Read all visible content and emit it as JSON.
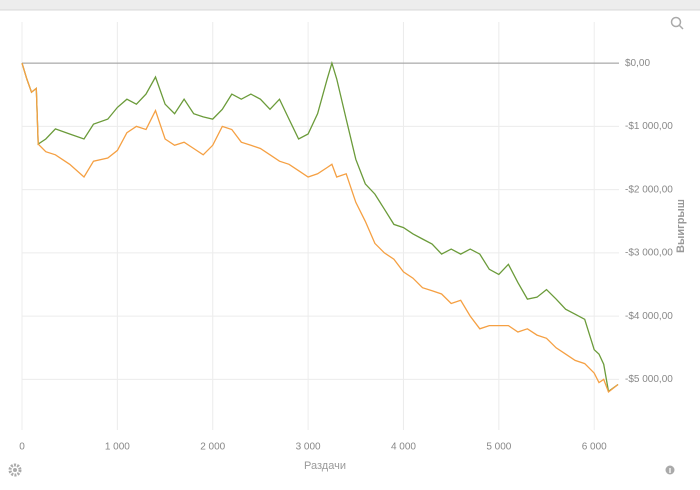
{
  "chart_data": {
    "type": "line",
    "xlabel": "Раздачи",
    "ylabel": "Выигрыш",
    "x": [
      0,
      50,
      100,
      150,
      170,
      250,
      350,
      500,
      650,
      750,
      900,
      1000,
      1100,
      1200,
      1300,
      1400,
      1500,
      1600,
      1700,
      1800,
      1900,
      2000,
      2100,
      2200,
      2300,
      2400,
      2500,
      2600,
      2700,
      2800,
      2900,
      3000,
      3100,
      3200,
      3250,
      3300,
      3400,
      3500,
      3600,
      3700,
      3800,
      3900,
      4000,
      4100,
      4200,
      4300,
      4400,
      4500,
      4600,
      4700,
      4800,
      4900,
      5000,
      5100,
      5200,
      5300,
      5400,
      5500,
      5600,
      5700,
      5800,
      5900,
      6000,
      6050,
      6100,
      6150,
      6250
    ],
    "series": [
      {
        "color": "#6b9b3a",
        "values": [
          0,
          -250,
          -460,
          -400,
          -1280,
          -1200,
          -1040,
          -1120,
          -1200,
          -965,
          -885,
          -700,
          -570,
          -650,
          -490,
          -220,
          -650,
          -800,
          -570,
          -800,
          -850,
          -885,
          -730,
          -490,
          -570,
          -490,
          -570,
          -730,
          -570,
          -885,
          -1200,
          -1120,
          -800,
          -250,
          0,
          -250,
          -885,
          -1520,
          -1910,
          -2070,
          -2310,
          -2550,
          -2600,
          -2700,
          -2780,
          -2860,
          -3020,
          -2940,
          -3020,
          -2940,
          -3020,
          -3260,
          -3340,
          -3180,
          -3470,
          -3730,
          -3700,
          -3580,
          -3730,
          -3890,
          -3970,
          -4050,
          -4530,
          -4600,
          -4760,
          -5190,
          -5080
        ]
      },
      {
        "color": "#f5a043",
        "values": [
          0,
          -250,
          -460,
          -400,
          -1280,
          -1400,
          -1450,
          -1600,
          -1800,
          -1550,
          -1500,
          -1380,
          -1100,
          -1000,
          -1050,
          -750,
          -1200,
          -1300,
          -1250,
          -1350,
          -1450,
          -1300,
          -1000,
          -1050,
          -1250,
          -1300,
          -1350,
          -1450,
          -1550,
          -1600,
          -1700,
          -1800,
          -1750,
          -1650,
          -1600,
          -1800,
          -1750,
          -2200,
          -2500,
          -2850,
          -3000,
          -3100,
          -3300,
          -3400,
          -3550,
          -3600,
          -3650,
          -3800,
          -3750,
          -4000,
          -4200,
          -4150,
          -4150,
          -4150,
          -4250,
          -4200,
          -4300,
          -4350,
          -4500,
          -4600,
          -4700,
          -4750,
          -4900,
          -5050,
          -5000,
          -5200,
          -5080
        ]
      }
    ],
    "xlim": [
      0,
      6260
    ],
    "ylim": [
      -5800,
      650
    ],
    "xticks": [
      0,
      {
        "value": 1000,
        "label": "1 000"
      },
      {
        "value": 2000,
        "label": "2 000"
      },
      {
        "value": 3000,
        "label": "3 000"
      },
      {
        "value": 4000,
        "label": "4 000"
      },
      {
        "value": 5000,
        "label": "5 000"
      },
      {
        "value": 6000,
        "label": "6 000"
      }
    ],
    "yticks": [
      {
        "value": 0,
        "label": "$0,00"
      },
      {
        "value": -1000,
        "label": "-$1 000,00"
      },
      {
        "value": -2000,
        "label": "-$2 000,00"
      },
      {
        "value": -3000,
        "label": "-$3 000,00"
      },
      {
        "value": -4000,
        "label": "-$4 000,00"
      },
      {
        "value": -5000,
        "label": "-$5 000,00"
      }
    ],
    "grid": true
  }
}
